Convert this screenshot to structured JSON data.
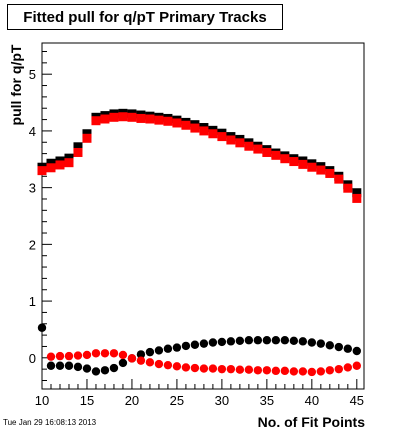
{
  "timestamp": "Tue Jan 29 16:08:13 2013",
  "chart_data": {
    "type": "scatter",
    "title": "Fitted pull for q/pT Primary Tracks",
    "xlabel": "No. of Fit Points",
    "ylabel": "pull for q/pT",
    "xlim": [
      10,
      45.8
    ],
    "ylim": [
      -0.55,
      5.55
    ],
    "xticks": [
      10,
      15,
      20,
      25,
      30,
      35,
      40,
      45
    ],
    "yticks": [
      0,
      1,
      2,
      3,
      4,
      5
    ],
    "grid": false,
    "colors": {
      "black": "#000000",
      "red": "#ff0000"
    },
    "series": [
      {
        "marker": "square",
        "color": "#000000",
        "x": [
          10,
          11,
          12,
          13,
          14,
          15,
          16,
          17,
          18,
          19,
          20,
          21,
          22,
          23,
          24,
          25,
          26,
          27,
          28,
          29,
          30,
          31,
          32,
          33,
          34,
          35,
          36,
          37,
          38,
          39,
          40,
          41,
          42,
          43,
          44,
          45
        ],
        "y": [
          3.36,
          3.43,
          3.47,
          3.52,
          3.72,
          3.95,
          4.24,
          4.27,
          4.3,
          4.31,
          4.3,
          4.28,
          4.26,
          4.24,
          4.22,
          4.19,
          4.15,
          4.11,
          4.06,
          4.01,
          3.96,
          3.9,
          3.85,
          3.79,
          3.73,
          3.67,
          3.61,
          3.56,
          3.51,
          3.47,
          3.42,
          3.37,
          3.3,
          3.2,
          3.05,
          2.91
        ]
      },
      {
        "marker": "square",
        "color": "#ff0000",
        "x": [
          10,
          11,
          12,
          13,
          14,
          15,
          16,
          17,
          18,
          19,
          20,
          21,
          22,
          23,
          24,
          25,
          26,
          27,
          28,
          29,
          30,
          31,
          32,
          33,
          34,
          35,
          36,
          37,
          38,
          39,
          40,
          41,
          42,
          43,
          44,
          45
        ],
        "y": [
          3.3,
          3.35,
          3.4,
          3.44,
          3.62,
          3.87,
          4.18,
          4.21,
          4.24,
          4.25,
          4.24,
          4.22,
          4.21,
          4.19,
          4.17,
          4.14,
          4.1,
          4.05,
          4.0,
          3.95,
          3.9,
          3.84,
          3.79,
          3.73,
          3.68,
          3.62,
          3.57,
          3.51,
          3.46,
          3.41,
          3.36,
          3.31,
          3.25,
          3.15,
          2.99,
          2.81
        ]
      },
      {
        "marker": "circle",
        "color": "#000000",
        "x": [
          10,
          11,
          12,
          13,
          14,
          15,
          16,
          17,
          18,
          19,
          20,
          21,
          22,
          23,
          24,
          25,
          26,
          27,
          28,
          29,
          30,
          31,
          32,
          33,
          34,
          35,
          36,
          37,
          38,
          39,
          40,
          41,
          42,
          43,
          44,
          45
        ],
        "y": [
          0.53,
          -0.14,
          -0.14,
          -0.14,
          -0.16,
          -0.19,
          -0.24,
          -0.22,
          -0.18,
          -0.09,
          -0.01,
          0.06,
          0.1,
          0.13,
          0.16,
          0.18,
          0.21,
          0.23,
          0.25,
          0.27,
          0.28,
          0.29,
          0.3,
          0.31,
          0.31,
          0.31,
          0.31,
          0.31,
          0.3,
          0.29,
          0.27,
          0.25,
          0.22,
          0.19,
          0.16,
          0.12
        ]
      },
      {
        "marker": "circle",
        "color": "#ff0000",
        "x": [
          11,
          12,
          13,
          14,
          15,
          16,
          17,
          18,
          19,
          20,
          21,
          22,
          23,
          24,
          25,
          26,
          27,
          28,
          29,
          30,
          31,
          32,
          33,
          34,
          35,
          36,
          37,
          38,
          39,
          40,
          41,
          42,
          43,
          44,
          45
        ],
        "y": [
          0.02,
          0.03,
          0.03,
          0.04,
          0.05,
          0.08,
          0.08,
          0.08,
          0.05,
          -0.01,
          -0.05,
          -0.08,
          -0.11,
          -0.13,
          -0.15,
          -0.17,
          -0.18,
          -0.19,
          -0.19,
          -0.2,
          -0.2,
          -0.21,
          -0.21,
          -0.22,
          -0.22,
          -0.23,
          -0.23,
          -0.24,
          -0.24,
          -0.25,
          -0.24,
          -0.22,
          -0.2,
          -0.17,
          -0.14
        ]
      }
    ]
  }
}
